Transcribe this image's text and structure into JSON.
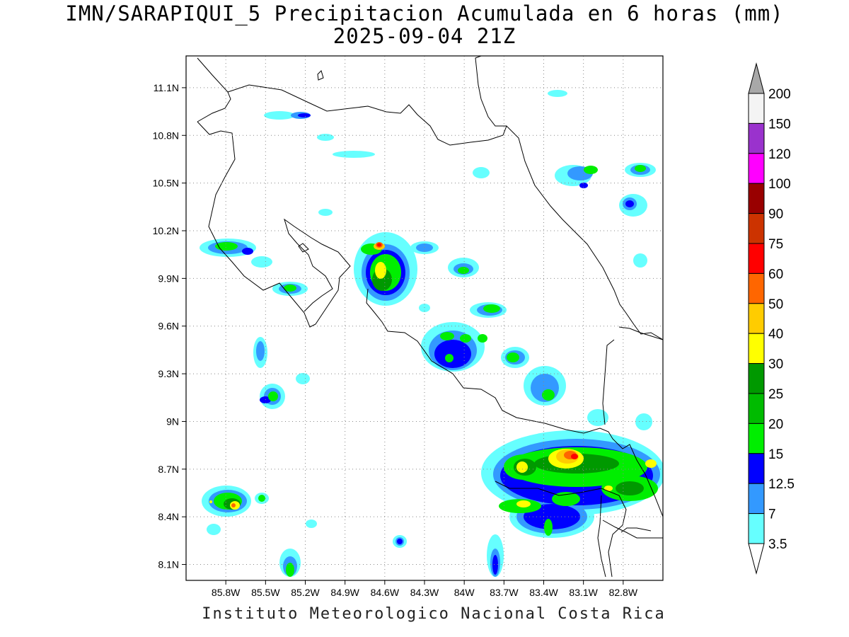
{
  "title": {
    "line1": "IMN/SARAPIQUI_5 Precipitacion Acumulada en 6 horas (mm)",
    "line2": "2025-09-04 21Z"
  },
  "footer": "Instituto Meteorologico Nacional Costa Rica",
  "map": {
    "lon_labels": [
      "85.8W",
      "85.5W",
      "85.2W",
      "84.9W",
      "84.6W",
      "84.3W",
      "84W",
      "83.7W",
      "83.4W",
      "83.1W",
      "82.8W"
    ],
    "lat_labels": [
      "11.1N",
      "10.8N",
      "10.5N",
      "10.2N",
      "9.9N",
      "9.6N",
      "9.3N",
      "9N",
      "8.7N",
      "8.4N",
      "8.1N"
    ],
    "lon_range": [
      -86.1,
      -82.5
    ],
    "lat_range": [
      8.0,
      11.3
    ],
    "grid": "dotted"
  },
  "colorbar": {
    "labels": [
      "200",
      "150",
      "120",
      "100",
      "90",
      "75",
      "60",
      "50",
      "40",
      "30",
      "25",
      "20",
      "15",
      "12.5",
      "7",
      "3.5"
    ],
    "colors": [
      "#f4f4f4",
      "#9a32cd",
      "#ff00ff",
      "#990000",
      "#cc3300",
      "#ff0000",
      "#ff6600",
      "#ffcc00",
      "#ffff00",
      "#009900",
      "#00bb00",
      "#00ee00",
      "#0000ff",
      "#3399ff",
      "#66ffff"
    ]
  }
}
